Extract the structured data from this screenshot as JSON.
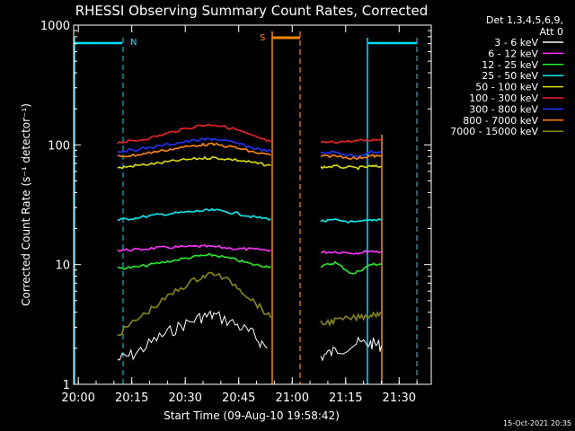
{
  "chart_data": {
    "type": "line",
    "title": "RHESSI Observing Summary Count Rates, Corrected",
    "xlabel": "Start Time (09-Aug-10 19:58:42)",
    "ylabel": "Corrected Count Rate (s⁻¹ detector⁻¹)",
    "xlim": [
      "19:58:42",
      "21:39:00"
    ],
    "ylim": [
      1,
      1000
    ],
    "yscale": "log",
    "x_ticks": [
      "20:00",
      "20:15",
      "20:30",
      "20:45",
      "21:00",
      "21:15",
      "21:30"
    ],
    "y_ticks": [
      "1",
      "10",
      "100",
      "1000"
    ],
    "legend_header": [
      "Det 1,3,4,5,6,9,",
      "Att 0"
    ],
    "legend_placement": "right",
    "timestamp": "15-Oct-2021 20:35",
    "series": [
      {
        "name": "3 - 6 keV",
        "color": "#ffffff",
        "x": [
          "20:11",
          "20:16",
          "20:22",
          "20:28",
          "20:34",
          "20:38",
          "20:44",
          "20:49",
          "20:53",
          "21:08",
          "21:12",
          "21:18",
          "21:22",
          "21:25"
        ],
        "values": [
          1.6,
          1.8,
          2.4,
          3.0,
          3.6,
          3.8,
          3.2,
          2.6,
          2.0,
          1.7,
          1.9,
          2.2,
          2.2,
          2.1
        ]
      },
      {
        "name": "6 - 12 keV",
        "color": "#ff33ff",
        "x": [
          "20:11",
          "20:16",
          "20:22",
          "20:28",
          "20:34",
          "20:38",
          "20:44",
          "20:49",
          "20:54",
          "21:08",
          "21:12",
          "21:18",
          "21:22",
          "21:25"
        ],
        "values": [
          13.2,
          13.3,
          13.8,
          14.0,
          14.2,
          14.1,
          13.6,
          13.4,
          13.2,
          12.6,
          12.8,
          12.5,
          13.0,
          12.8
        ]
      },
      {
        "name": "12 - 25 keV",
        "color": "#22ee22",
        "x": [
          "20:11",
          "20:16",
          "20:22",
          "20:28",
          "20:34",
          "20:38",
          "20:44",
          "20:49",
          "20:54",
          "21:08",
          "21:12",
          "21:17",
          "21:22",
          "21:25"
        ],
        "values": [
          9.3,
          9.5,
          10.2,
          11.0,
          11.8,
          12.0,
          11.0,
          10.0,
          9.6,
          9.6,
          10.4,
          8.3,
          10.0,
          10.1
        ]
      },
      {
        "name": "25 - 50 keV",
        "color": "#00eeee",
        "x": [
          "20:11",
          "20:16",
          "20:22",
          "20:28",
          "20:34",
          "20:38",
          "20:44",
          "20:49",
          "20:54",
          "21:08",
          "21:12",
          "21:18",
          "21:22",
          "21:25"
        ],
        "values": [
          23.5,
          24.5,
          26.0,
          27.0,
          28.0,
          28.5,
          27.0,
          25.0,
          24.0,
          23.0,
          23.5,
          22.5,
          23.5,
          24.0
        ]
      },
      {
        "name": "50 - 100 keV",
        "color": "#dddd00",
        "x": [
          "20:11",
          "20:16",
          "20:22",
          "20:28",
          "20:34",
          "20:38",
          "20:44",
          "20:49",
          "20:54",
          "21:08",
          "21:12",
          "21:18",
          "21:22",
          "21:25"
        ],
        "values": [
          64,
          67,
          70,
          74,
          77,
          78,
          75,
          71,
          67,
          65,
          66,
          64,
          66,
          66
        ]
      },
      {
        "name": "100 - 300 keV",
        "color": "#ee2222",
        "x": [
          "20:11",
          "20:16",
          "20:22",
          "20:28",
          "20:34",
          "20:38",
          "20:44",
          "20:49",
          "20:54",
          "21:08",
          "21:12",
          "21:18",
          "21:22",
          "21:25"
        ],
        "values": [
          105,
          108,
          118,
          132,
          145,
          148,
          135,
          118,
          106,
          104,
          106,
          108,
          110,
          112
        ]
      },
      {
        "name": "300 - 800 keV",
        "color": "#2233ff",
        "x": [
          "20:11",
          "20:16",
          "20:22",
          "20:28",
          "20:34",
          "20:38",
          "20:44",
          "20:49",
          "20:54",
          "21:08",
          "21:12",
          "21:18",
          "21:22",
          "21:25"
        ],
        "values": [
          88,
          91,
          97,
          104,
          110,
          112,
          104,
          94,
          88,
          85,
          87,
          80,
          87,
          86
        ]
      },
      {
        "name": "800 - 7000 keV",
        "color": "#ff8800",
        "x": [
          "20:11",
          "20:16",
          "20:22",
          "20:28",
          "20:34",
          "20:38",
          "20:44",
          "20:49",
          "20:54",
          "21:08",
          "21:12",
          "21:18",
          "21:22",
          "21:25"
        ],
        "values": [
          80,
          82,
          88,
          94,
          100,
          101,
          95,
          87,
          82,
          80,
          81,
          77,
          81,
          80
        ]
      },
      {
        "name": "7000 - 15000 keV",
        "color": "#888800",
        "x": [
          "20:11",
          "20:16",
          "20:22",
          "20:28",
          "20:34",
          "20:38",
          "20:44",
          "20:49",
          "20:54",
          "21:08",
          "21:12",
          "21:18",
          "21:22",
          "21:25"
        ],
        "values": [
          2.6,
          3.4,
          4.6,
          6.2,
          7.8,
          8.5,
          6.8,
          5.0,
          3.6,
          3.2,
          3.4,
          3.6,
          3.8,
          4.0
        ]
      }
    ],
    "flags": [
      {
        "label": "N",
        "color": "#00ddff"
      },
      {
        "label": "S",
        "color": "#ff8800"
      }
    ]
  }
}
